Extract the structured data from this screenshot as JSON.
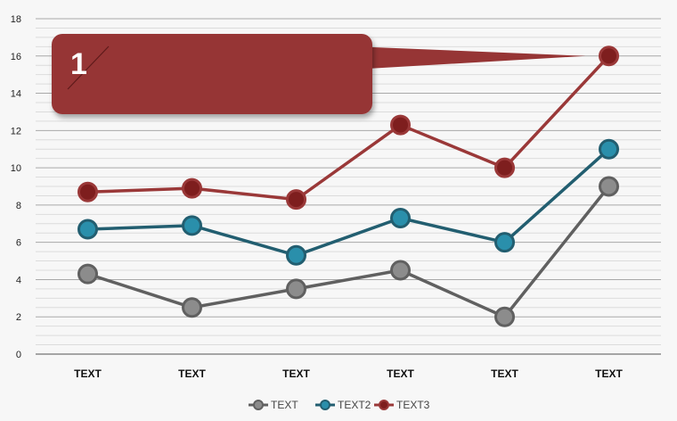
{
  "chart_data": {
    "type": "line",
    "categories": [
      "TEXT",
      "TEXT",
      "TEXT",
      "TEXT",
      "TEXT",
      "TEXT"
    ],
    "series": [
      {
        "name": "TEXT",
        "values": [
          4.3,
          2.5,
          3.5,
          4.5,
          2.0,
          9.0
        ],
        "color": "#606060",
        "marker_fill": "#8c8c8c"
      },
      {
        "name": "TEXT2",
        "values": [
          6.7,
          6.9,
          5.3,
          7.3,
          6.0,
          11.0
        ],
        "color": "#225e70",
        "marker_fill": "#2a8fab"
      },
      {
        "name": "TEXT3",
        "values": [
          8.7,
          8.9,
          8.3,
          12.3,
          10.0,
          16.0
        ],
        "color": "#9a3838",
        "marker_fill": "#7e1e1e"
      }
    ],
    "yticks": [
      "0",
      "2",
      "4",
      "6",
      "8",
      "10",
      "12",
      "14",
      "16",
      "18"
    ],
    "ylim": [
      0,
      18
    ],
    "minor_step": 0.5,
    "grid": true,
    "legend_position": "bottom",
    "callout": {
      "text": "1",
      "color": "#963535"
    }
  }
}
